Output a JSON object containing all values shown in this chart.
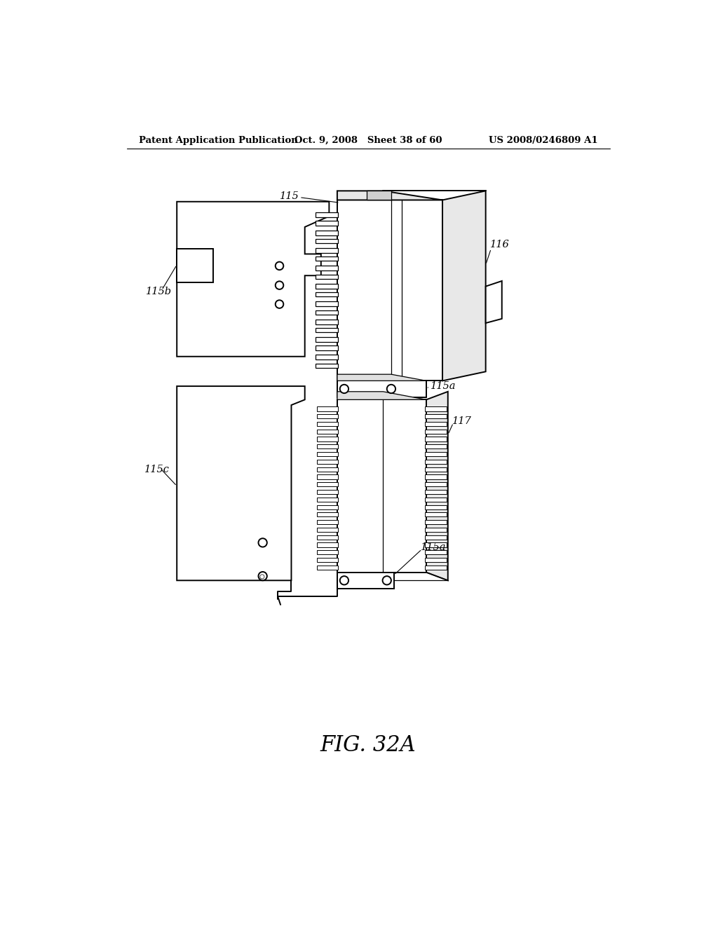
{
  "title_left": "Patent Application Publication",
  "title_mid": "Oct. 9, 2008   Sheet 38 of 60",
  "title_right": "US 2008/0246809 A1",
  "fig_label": "FIG. 32A",
  "bg_color": "#ffffff",
  "line_color": "#000000",
  "lw_main": 1.4,
  "lw_thin": 0.9
}
